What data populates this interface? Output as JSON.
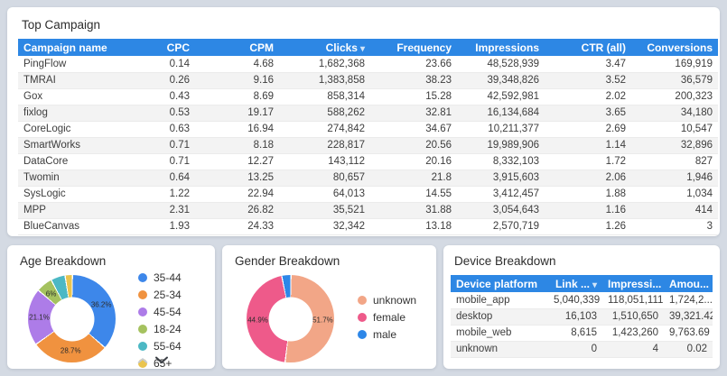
{
  "theme": {
    "page_background": "#d4dae3",
    "card_background": "#ffffff",
    "accent_header_blue": "#2d87e4",
    "row_stripe": "#f3f3f3",
    "text_dark": "#2d2d2d"
  },
  "top_campaign": {
    "title": "Top Campaign",
    "columns": [
      {
        "label": "Campaign name",
        "sorted": false
      },
      {
        "label": "CPC",
        "sorted": false
      },
      {
        "label": "CPM",
        "sorted": false
      },
      {
        "label": "Clicks",
        "sorted": true
      },
      {
        "label": "Frequency",
        "sorted": false
      },
      {
        "label": "Impressions",
        "sorted": false
      },
      {
        "label": "CTR (all)",
        "sorted": false
      },
      {
        "label": "Conversions",
        "sorted": false
      }
    ],
    "rows": [
      [
        "PingFlow",
        "0.14",
        "4.68",
        "1,682,368",
        "23.66",
        "48,528,939",
        "3.47",
        "169,919"
      ],
      [
        "TMRAI",
        "0.26",
        "9.16",
        "1,383,858",
        "38.23",
        "39,348,826",
        "3.52",
        "36,579"
      ],
      [
        "Gox",
        "0.43",
        "8.69",
        "858,314",
        "15.28",
        "42,592,981",
        "2.02",
        "200,323"
      ],
      [
        "fixlog",
        "0.53",
        "19.17",
        "588,262",
        "32.81",
        "16,134,684",
        "3.65",
        "34,180"
      ],
      [
        "CoreLogic",
        "0.63",
        "16.94",
        "274,842",
        "34.67",
        "10,211,377",
        "2.69",
        "10,547"
      ],
      [
        "SmartWorks",
        "0.71",
        "8.18",
        "228,817",
        "20.56",
        "19,989,906",
        "1.14",
        "32,896"
      ],
      [
        "DataCore",
        "0.71",
        "12.27",
        "143,112",
        "20.16",
        "8,332,103",
        "1.72",
        "827"
      ],
      [
        "Twomin",
        "0.64",
        "13.25",
        "80,657",
        "21.8",
        "3,915,603",
        "2.06",
        "1,946"
      ],
      [
        "SysLogic",
        "1.22",
        "22.94",
        "64,013",
        "14.55",
        "3,412,457",
        "1.88",
        "1,034"
      ],
      [
        "MPP",
        "2.31",
        "26.82",
        "35,521",
        "31.88",
        "3,054,643",
        "1.16",
        "414"
      ],
      [
        "BlueCanvas",
        "1.93",
        "24.33",
        "32,342",
        "13.18",
        "2,570,719",
        "1.26",
        "3"
      ]
    ]
  },
  "age_breakdown": {
    "title": "Age Breakdown"
  },
  "gender_breakdown": {
    "title": "Gender Breakdown"
  },
  "device_breakdown": {
    "title": "Device Breakdown",
    "columns": [
      {
        "label": "Device platform",
        "sorted": false
      },
      {
        "label": "Link ...",
        "sorted": true
      },
      {
        "label": "Impressi...",
        "sorted": false
      },
      {
        "label": "Amou...",
        "sorted": false
      }
    ],
    "rows": [
      [
        "mobile_app",
        "5,040,339",
        "118,051,111",
        "1,724,2..."
      ],
      [
        "desktop",
        "16,103",
        "1,510,650",
        "39,321.42"
      ],
      [
        "mobile_web",
        "8,615",
        "1,423,260",
        "9,763.69"
      ],
      [
        "unknown",
        "0",
        "4",
        "0.02"
      ]
    ]
  },
  "chart_data": [
    {
      "type": "pie",
      "title": "Age Breakdown",
      "labels": [
        "35-44",
        "25-34",
        "45-54",
        "18-24",
        "55-64",
        "65+"
      ],
      "values": [
        36.2,
        28.7,
        21.1,
        6.0,
        5.3,
        2.7
      ],
      "colors": [
        "#3d87ea",
        "#f0923f",
        "#ad7ce8",
        "#a5c25f",
        "#4cb8c4",
        "#eac44e"
      ],
      "slice_labels": [
        "36.2%",
        "28.7%",
        "21.1%",
        "6%",
        null,
        null
      ],
      "legend_position": "right",
      "donut": true,
      "legend_paged": true
    },
    {
      "type": "pie",
      "title": "Gender Breakdown",
      "labels": [
        "unknown",
        "female",
        "male"
      ],
      "values": [
        51.7,
        44.9,
        3.4
      ],
      "colors": [
        "#f2a687",
        "#ee5a8a",
        "#2d87e8"
      ],
      "slice_labels": [
        "51.7%",
        "44.9%",
        null
      ],
      "legend_position": "right",
      "donut": true,
      "legend_paged": false
    }
  ]
}
